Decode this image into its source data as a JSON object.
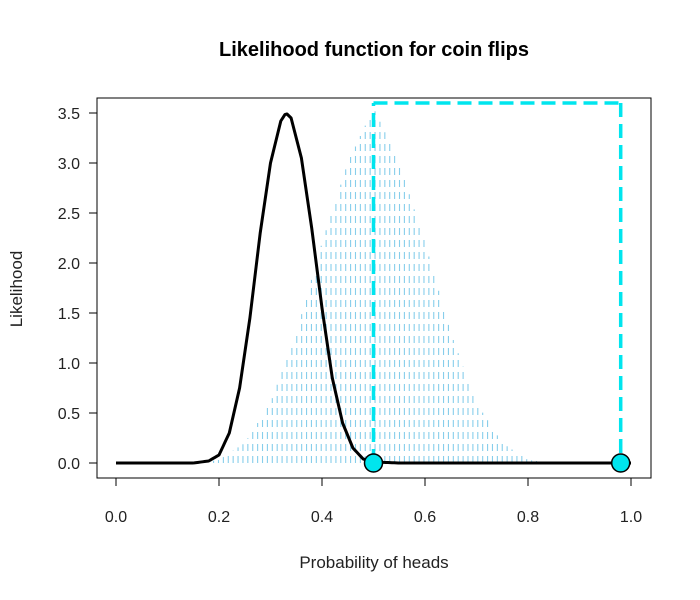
{
  "chart_data": {
    "type": "line",
    "title": "Likelihood function for coin flips",
    "xlabel": "Probability of heads",
    "ylabel": "Likelihood",
    "xlim": [
      0,
      1
    ],
    "ylim": [
      0,
      3.5
    ],
    "x_ticks": [
      "0.0",
      "0.2",
      "0.4",
      "0.6",
      "0.8",
      "1.0"
    ],
    "y_ticks": [
      "0.0",
      "0.5",
      "1.0",
      "1.5",
      "2.0",
      "2.5",
      "3.0",
      "3.5"
    ],
    "grid": false,
    "series": [
      {
        "style": "solid",
        "color": "#000000",
        "x": [
          0.0,
          0.1,
          0.15,
          0.18,
          0.2,
          0.22,
          0.24,
          0.26,
          0.28,
          0.3,
          0.32,
          0.33,
          0.34,
          0.36,
          0.38,
          0.4,
          0.42,
          0.44,
          0.46,
          0.48,
          0.5,
          0.55,
          0.6,
          0.7,
          0.8,
          0.9,
          1.0
        ],
        "y": [
          0.0,
          0.0,
          0.0,
          0.02,
          0.08,
          0.3,
          0.75,
          1.45,
          2.3,
          3.0,
          3.42,
          3.5,
          3.45,
          3.05,
          2.35,
          1.55,
          0.85,
          0.4,
          0.15,
          0.04,
          0.01,
          0.0,
          0.0,
          0.0,
          0.0,
          0.0,
          0.0
        ]
      },
      {
        "style": "dotted-fill",
        "color": "#87ceeb",
        "x": [
          0.0,
          0.15,
          0.2,
          0.25,
          0.3,
          0.35,
          0.4,
          0.45,
          0.5,
          0.55,
          0.6,
          0.65,
          0.7,
          0.75,
          0.8,
          0.85,
          1.0
        ],
        "y": [
          0.0,
          0.0,
          0.03,
          0.2,
          0.6,
          1.3,
          2.2,
          3.0,
          3.55,
          3.0,
          2.2,
          1.3,
          0.6,
          0.2,
          0.03,
          0.0,
          0.0
        ]
      }
    ],
    "highlight": {
      "color": "#00e5ee",
      "rect_x": [
        0.5,
        0.98
      ],
      "rect_y_top": 3.6,
      "points": [
        {
          "x": 0.5,
          "y": 0
        },
        {
          "x": 0.98,
          "y": 0
        }
      ]
    }
  }
}
